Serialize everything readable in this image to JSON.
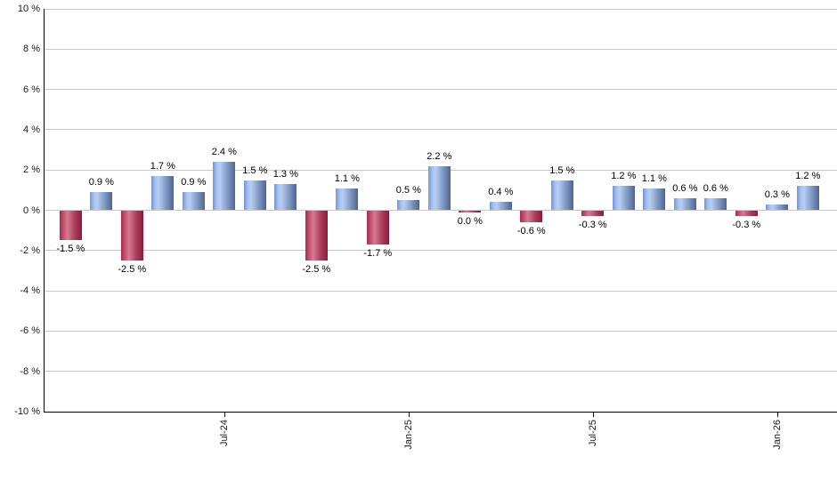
{
  "chart_data": {
    "type": "bar",
    "title": "",
    "xlabel": "",
    "ylabel": "",
    "ylim": [
      -10,
      10
    ],
    "y_tick_step": 2,
    "y_tick_suffix": " %",
    "grid": true,
    "legend": "none",
    "bars": [
      {
        "value": -1.5,
        "label": "-1.5 %",
        "dir": "down"
      },
      {
        "value": 0.9,
        "label": "0.9 %",
        "dir": "up"
      },
      {
        "value": -2.5,
        "label": "-2.5 %",
        "dir": "down"
      },
      {
        "value": 1.7,
        "label": "1.7 %",
        "dir": "up"
      },
      {
        "value": 0.9,
        "label": "0.9 %",
        "dir": "up"
      },
      {
        "value": 2.4,
        "label": "2.4 %",
        "dir": "up"
      },
      {
        "value": 1.5,
        "label": "1.5 %",
        "dir": "up"
      },
      {
        "value": 1.3,
        "label": "1.3 %",
        "dir": "up"
      },
      {
        "value": -2.5,
        "label": "-2.5 %",
        "dir": "down"
      },
      {
        "value": 1.1,
        "label": "1.1 %",
        "dir": "up"
      },
      {
        "value": -1.7,
        "label": "-1.7 %",
        "dir": "down"
      },
      {
        "value": 0.5,
        "label": "0.5 %",
        "dir": "up"
      },
      {
        "value": 2.2,
        "label": "2.2 %",
        "dir": "up"
      },
      {
        "value": 0.0,
        "label": "0.0 %",
        "dir": "down"
      },
      {
        "value": 0.4,
        "label": "0.4 %",
        "dir": "up"
      },
      {
        "value": -0.6,
        "label": "-0.6 %",
        "dir": "down"
      },
      {
        "value": 1.5,
        "label": "1.5 %",
        "dir": "up"
      },
      {
        "value": -0.3,
        "label": "-0.3 %",
        "dir": "down"
      },
      {
        "value": 1.2,
        "label": "1.2 %",
        "dir": "up"
      },
      {
        "value": 1.1,
        "label": "1.1 %",
        "dir": "up"
      },
      {
        "value": 0.6,
        "label": "0.6 %",
        "dir": "up"
      },
      {
        "value": 0.6,
        "label": "0.6 %",
        "dir": "up"
      },
      {
        "value": -0.3,
        "label": "-0.3 %",
        "dir": "down"
      },
      {
        "value": 0.3,
        "label": "0.3 %",
        "dir": "up"
      },
      {
        "value": 1.2,
        "label": "1.2 %",
        "dir": "up"
      }
    ],
    "x_ticks": [
      {
        "bar_index": 5,
        "label": "Jul-24"
      },
      {
        "bar_index": 11,
        "label": "Jan-25"
      },
      {
        "bar_index": 17,
        "label": "Jul-25"
      },
      {
        "bar_index": 23,
        "label": "Jan-26"
      }
    ],
    "colors": {
      "positive_bar": "#89a9e0",
      "negative_bar": "#c24868",
      "gridline": "#c9c9c9",
      "axis": "#000000",
      "label_text": "#000000"
    }
  }
}
